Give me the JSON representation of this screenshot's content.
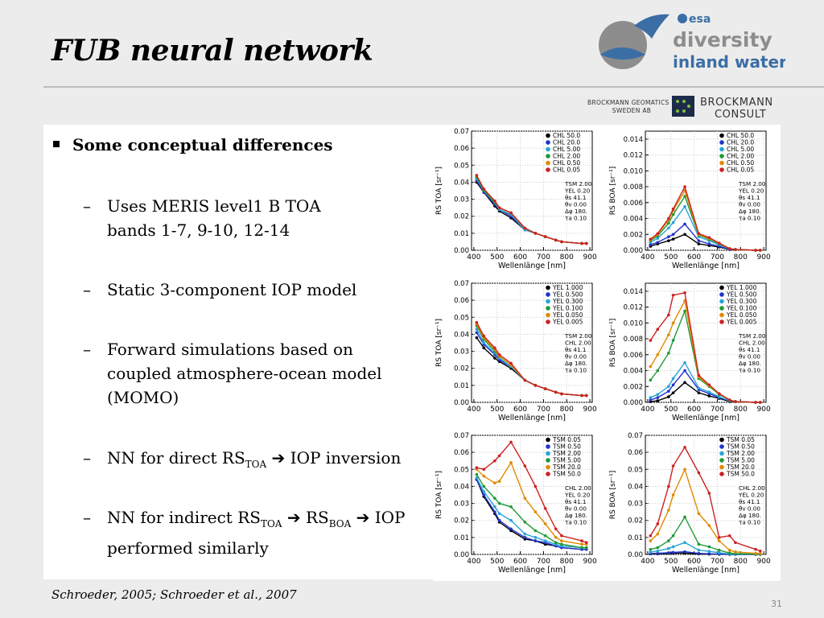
{
  "slide": {
    "title": "FUB neural network",
    "bullet": "Some conceptual differences",
    "items": [
      {
        "lines": [
          "Uses MERIS level1 B TOA",
          "bands 1-7, 9-10, 12-14"
        ]
      },
      {
        "lines": [
          "Static 3-component IOP model"
        ]
      },
      {
        "lines": [
          "Forward simulations based on",
          "coupled atmosphere-ocean model",
          "(MOMO)"
        ]
      },
      {
        "nn_direct": {
          "pre": "NN for direct RS",
          "sub": "TOA",
          "post": "IOP inversion"
        }
      },
      {
        "nn_indirect": {
          "pre": "NN for indirect RS",
          "sub1": "TOA",
          "mid": "RS",
          "sub2": "BOA",
          "post": "IOP",
          "line2": "performed similarly"
        }
      }
    ],
    "footer": "Schroeder, 2005; Schroeder et al., 2007",
    "page_number": "31"
  },
  "logo": {
    "esa": "esa",
    "line1": "diversity",
    "line2": "inland waters",
    "color": "#3b6ea5",
    "grey": "#8d8d8d"
  },
  "partners": {
    "p1_line1": "Brockmann Geomatics",
    "p1_line2": "Sweden AB",
    "p2_line1": "Brockmann",
    "p2_line2": "Consult"
  },
  "chart_data": [
    {
      "type": "line",
      "panel": "TOA-CHL",
      "xlabel": "Wellenlänge [nm]",
      "ylabel": "RS TOA [sr⁻¹]",
      "xlim": [
        390,
        910
      ],
      "ylim": [
        0,
        0.07
      ],
      "yticks": [
        "0.00",
        "0.01",
        "0.02",
        "0.03",
        "0.04",
        "0.05",
        "0.06",
        "0.07"
      ],
      "xticks": [
        "400",
        "500",
        "600",
        "700",
        "800",
        "900"
      ],
      "x": [
        412,
        443,
        490,
        510,
        560,
        620,
        665,
        708,
        753,
        778,
        865,
        885
      ],
      "series": [
        {
          "name": "CHL 50.0",
          "color": "#000000",
          "values": [
            0.04,
            0.034,
            0.026,
            0.023,
            0.019,
            0.012,
            0.01,
            0.008,
            0.006,
            0.005,
            0.004,
            0.004
          ]
        },
        {
          "name": "CHL 20.0",
          "color": "#2233cc",
          "values": [
            0.041,
            0.034,
            0.027,
            0.024,
            0.02,
            0.012,
            0.01,
            0.008,
            0.006,
            0.005,
            0.004,
            0.004
          ]
        },
        {
          "name": "CHL 5.00",
          "color": "#29a3d6",
          "values": [
            0.042,
            0.035,
            0.028,
            0.024,
            0.021,
            0.012,
            0.01,
            0.008,
            0.006,
            0.005,
            0.004,
            0.004
          ]
        },
        {
          "name": "CHL 2.00",
          "color": "#1e9a36",
          "values": [
            0.043,
            0.035,
            0.028,
            0.025,
            0.022,
            0.013,
            0.01,
            0.008,
            0.006,
            0.005,
            0.004,
            0.004
          ]
        },
        {
          "name": "CHL 0.50",
          "color": "#e08a00",
          "values": [
            0.044,
            0.036,
            0.029,
            0.025,
            0.022,
            0.013,
            0.01,
            0.008,
            0.006,
            0.005,
            0.004,
            0.004
          ]
        },
        {
          "name": "CHL 0.05",
          "color": "#cc2222",
          "values": [
            0.044,
            0.036,
            0.029,
            0.025,
            0.022,
            0.013,
            0.01,
            0.008,
            0.006,
            0.005,
            0.004,
            0.004
          ]
        }
      ],
      "annotation": [
        "TSM 2.00",
        "YEL 0.20",
        "θs 41.1",
        "θv 0.00",
        "Δφ 180.",
        "τa 0.10"
      ]
    },
    {
      "type": "line",
      "panel": "BOA-CHL",
      "xlabel": "Wellenlänge [nm]",
      "ylabel": "RS BOA [sr⁻¹]",
      "xlim": [
        390,
        910
      ],
      "ylim": [
        0,
        0.015
      ],
      "yticks": [
        "0.000",
        "0.002",
        "0.004",
        "0.006",
        "0.008",
        "0.010",
        "0.012",
        "0.014"
      ],
      "xticks": [
        "400",
        "500",
        "600",
        "700",
        "800",
        "900"
      ],
      "x": [
        412,
        443,
        490,
        510,
        560,
        620,
        665,
        708,
        753,
        778,
        865,
        885
      ],
      "series": [
        {
          "name": "CHL 50.0",
          "color": "#000000",
          "values": [
            0.0005,
            0.0008,
            0.0012,
            0.0014,
            0.002,
            0.0008,
            0.0006,
            0.0004,
            0.0001,
            0.0001,
            0.0,
            0.0
          ]
        },
        {
          "name": "CHL 20.0",
          "color": "#2233cc",
          "values": [
            0.0007,
            0.001,
            0.0017,
            0.002,
            0.0033,
            0.0012,
            0.0008,
            0.0005,
            0.0001,
            0.0001,
            0.0,
            0.0
          ]
        },
        {
          "name": "CHL 5.00",
          "color": "#29a3d6",
          "values": [
            0.001,
            0.0015,
            0.0028,
            0.0035,
            0.0055,
            0.0017,
            0.0012,
            0.0007,
            0.0002,
            0.0001,
            0.0,
            0.0
          ]
        },
        {
          "name": "CHL 2.00",
          "color": "#1e9a36",
          "values": [
            0.0012,
            0.0018,
            0.0034,
            0.0045,
            0.0068,
            0.0019,
            0.0014,
            0.0008,
            0.0002,
            0.0001,
            0.0,
            0.0
          ]
        },
        {
          "name": "CHL 0.50",
          "color": "#e08a00",
          "values": [
            0.0013,
            0.002,
            0.0038,
            0.005,
            0.0075,
            0.002,
            0.0015,
            0.0009,
            0.0002,
            0.0001,
            0.0,
            0.0
          ]
        },
        {
          "name": "CHL 0.05",
          "color": "#cc2222",
          "values": [
            0.0014,
            0.0021,
            0.004,
            0.0052,
            0.008,
            0.0021,
            0.0016,
            0.0009,
            0.0002,
            0.0001,
            0.0,
            0.0
          ]
        }
      ],
      "annotation": [
        "TSM 2.00",
        "YEL 0.20",
        "θs 41.1",
        "θv 0.00",
        "Δφ 180.",
        "τa 0.10"
      ]
    },
    {
      "type": "line",
      "panel": "TOA-YEL",
      "xlabel": "Wellenlänge [nm]",
      "ylabel": "RS TOA [sr⁻¹]",
      "xlim": [
        390,
        910
      ],
      "ylim": [
        0,
        0.07
      ],
      "yticks": [
        "0.00",
        "0.01",
        "0.02",
        "0.03",
        "0.04",
        "0.05",
        "0.06",
        "0.07"
      ],
      "xticks": [
        "400",
        "500",
        "600",
        "700",
        "800",
        "900"
      ],
      "x": [
        412,
        443,
        490,
        510,
        560,
        620,
        665,
        708,
        753,
        778,
        865,
        885
      ],
      "series": [
        {
          "name": "YEL 1.000",
          "color": "#000000",
          "values": [
            0.038,
            0.032,
            0.026,
            0.024,
            0.02,
            0.013,
            0.01,
            0.008,
            0.006,
            0.005,
            0.004,
            0.004
          ]
        },
        {
          "name": "YEL 0.500",
          "color": "#2233cc",
          "values": [
            0.041,
            0.034,
            0.028,
            0.025,
            0.021,
            0.013,
            0.01,
            0.008,
            0.006,
            0.005,
            0.004,
            0.004
          ]
        },
        {
          "name": "YEL 0.300",
          "color": "#29a3d6",
          "values": [
            0.043,
            0.035,
            0.029,
            0.026,
            0.021,
            0.013,
            0.01,
            0.008,
            0.006,
            0.005,
            0.004,
            0.004
          ]
        },
        {
          "name": "YEL 0.100",
          "color": "#1e9a36",
          "values": [
            0.045,
            0.037,
            0.03,
            0.027,
            0.022,
            0.013,
            0.01,
            0.008,
            0.006,
            0.005,
            0.004,
            0.004
          ]
        },
        {
          "name": "YEL 0.050",
          "color": "#e08a00",
          "values": [
            0.046,
            0.038,
            0.031,
            0.027,
            0.022,
            0.013,
            0.01,
            0.008,
            0.006,
            0.005,
            0.004,
            0.004
          ]
        },
        {
          "name": "YEL 0.005",
          "color": "#cc2222",
          "values": [
            0.047,
            0.039,
            0.032,
            0.028,
            0.023,
            0.013,
            0.01,
            0.008,
            0.006,
            0.005,
            0.004,
            0.004
          ]
        }
      ],
      "annotation": [
        "TSM 2.00",
        "CHL 2.00",
        "θs 41.1",
        "θv 0.00",
        "Δφ 180.",
        "τa 0.10"
      ]
    },
    {
      "type": "line",
      "panel": "BOA-YEL",
      "xlabel": "Wellenlänge [nm]",
      "ylabel": "RS BOA [sr⁻¹]",
      "xlim": [
        390,
        910
      ],
      "ylim": [
        0,
        0.015
      ],
      "yticks": [
        "0.000",
        "0.002",
        "0.004",
        "0.006",
        "0.008",
        "0.010",
        "0.012",
        "0.014"
      ],
      "xticks": [
        "400",
        "500",
        "600",
        "700",
        "800",
        "900"
      ],
      "x": [
        412,
        443,
        490,
        510,
        560,
        620,
        665,
        708,
        753,
        778,
        865,
        885
      ],
      "series": [
        {
          "name": "YEL 1.000",
          "color": "#000000",
          "values": [
            0.0001,
            0.0002,
            0.0007,
            0.0012,
            0.0025,
            0.0012,
            0.0008,
            0.0005,
            0.0001,
            0.0001,
            0.0,
            0.0
          ]
        },
        {
          "name": "YEL 0.500",
          "color": "#2233cc",
          "values": [
            0.0003,
            0.0006,
            0.0014,
            0.0022,
            0.004,
            0.0016,
            0.0011,
            0.0006,
            0.0002,
            0.0001,
            0.0,
            0.0
          ]
        },
        {
          "name": "YEL 0.300",
          "color": "#29a3d6",
          "values": [
            0.0006,
            0.001,
            0.002,
            0.003,
            0.005,
            0.0018,
            0.0013,
            0.0007,
            0.0002,
            0.0001,
            0.0,
            0.0
          ]
        },
        {
          "name": "YEL 0.100",
          "color": "#1e9a36",
          "values": [
            0.0028,
            0.004,
            0.0062,
            0.0078,
            0.0115,
            0.003,
            0.002,
            0.001,
            0.0003,
            0.0001,
            0.0,
            0.0
          ]
        },
        {
          "name": "YEL 0.050",
          "color": "#e08a00",
          "values": [
            0.0045,
            0.006,
            0.0085,
            0.01,
            0.0128,
            0.0032,
            0.0021,
            0.0011,
            0.0003,
            0.0001,
            0.0,
            0.0
          ]
        },
        {
          "name": "YEL 0.005",
          "color": "#cc2222",
          "values": [
            0.0078,
            0.0092,
            0.011,
            0.0135,
            0.0138,
            0.0034,
            0.0022,
            0.0011,
            0.0003,
            0.0001,
            0.0,
            0.0
          ]
        }
      ],
      "annotation": [
        "TSM 2.00",
        "CHL 2.00",
        "θs 41.1",
        "θv 0.00",
        "Δφ 180.",
        "τa 0.10"
      ]
    },
    {
      "type": "line",
      "panel": "TOA-TSM",
      "xlabel": "Wellenlänge [nm]",
      "ylabel": "RS TOA [sr⁻¹]",
      "xlim": [
        390,
        910
      ],
      "ylim": [
        0,
        0.07
      ],
      "yticks": [
        "0.00",
        "0.01",
        "0.02",
        "0.03",
        "0.04",
        "0.05",
        "0.06",
        "0.07"
      ],
      "xticks": [
        "400",
        "500",
        "600",
        "700",
        "800",
        "900"
      ],
      "x": [
        412,
        443,
        490,
        510,
        560,
        620,
        665,
        708,
        753,
        778,
        865,
        885
      ],
      "series": [
        {
          "name": "TSM 0.05",
          "color": "#000000",
          "values": [
            0.044,
            0.034,
            0.024,
            0.019,
            0.014,
            0.009,
            0.008,
            0.006,
            0.005,
            0.004,
            0.003,
            0.003
          ]
        },
        {
          "name": "TSM 0.50",
          "color": "#2233cc",
          "values": [
            0.044,
            0.035,
            0.025,
            0.02,
            0.015,
            0.01,
            0.008,
            0.007,
            0.005,
            0.004,
            0.003,
            0.003
          ]
        },
        {
          "name": "TSM 2.00",
          "color": "#29a3d6",
          "values": [
            0.045,
            0.037,
            0.028,
            0.024,
            0.02,
            0.012,
            0.01,
            0.008,
            0.006,
            0.005,
            0.004,
            0.004
          ]
        },
        {
          "name": "TSM 5.00",
          "color": "#1e9a36",
          "values": [
            0.047,
            0.04,
            0.033,
            0.03,
            0.028,
            0.019,
            0.014,
            0.011,
            0.007,
            0.006,
            0.004,
            0.004
          ]
        },
        {
          "name": "TSM 20.0",
          "color": "#e08a00",
          "values": [
            0.05,
            0.046,
            0.042,
            0.043,
            0.054,
            0.033,
            0.025,
            0.018,
            0.01,
            0.008,
            0.006,
            0.006
          ]
        },
        {
          "name": "TSM 50.0",
          "color": "#cc2222",
          "values": [
            0.051,
            0.05,
            0.055,
            0.058,
            0.066,
            0.052,
            0.04,
            0.027,
            0.015,
            0.011,
            0.008,
            0.007
          ]
        }
      ],
      "annotation": [
        "CHL 2.00",
        "YEL 0.20",
        "θs 41.1",
        "θv 0.00",
        "Δφ 180.",
        "τa 0.10"
      ]
    },
    {
      "type": "line",
      "panel": "BOA-TSM",
      "xlabel": "Wellenlänge [nm]",
      "ylabel": "RS BOA [sr⁻¹]",
      "xlim": [
        390,
        910
      ],
      "ylim": [
        0,
        0.07
      ],
      "yticks": [
        "0.00",
        "0.01",
        "0.02",
        "0.03",
        "0.04",
        "0.05",
        "0.06",
        "0.07"
      ],
      "xticks": [
        "400",
        "500",
        "600",
        "700",
        "800",
        "900"
      ],
      "x": [
        412,
        443,
        490,
        510,
        560,
        620,
        665,
        708,
        753,
        778,
        865,
        885
      ],
      "series": [
        {
          "name": "TSM 0.05",
          "color": "#000000",
          "values": [
            0.0003,
            0.0004,
            0.0006,
            0.0007,
            0.0008,
            0.0003,
            0.0002,
            0.0001,
            0.0,
            0.0,
            0.0,
            0.0
          ]
        },
        {
          "name": "TSM 0.50",
          "color": "#2233cc",
          "values": [
            0.0005,
            0.0007,
            0.001,
            0.0012,
            0.0016,
            0.0006,
            0.0004,
            0.0002,
            0.0001,
            0.0,
            0.0,
            0.0
          ]
        },
        {
          "name": "TSM 2.00",
          "color": "#29a3d6",
          "values": [
            0.0014,
            0.002,
            0.0035,
            0.0045,
            0.007,
            0.0025,
            0.0018,
            0.001,
            0.0003,
            0.0002,
            0.0001,
            0.0001
          ]
        },
        {
          "name": "TSM 5.00",
          "color": "#1e9a36",
          "values": [
            0.003,
            0.004,
            0.008,
            0.011,
            0.022,
            0.006,
            0.0045,
            0.0025,
            0.0008,
            0.0005,
            0.0002,
            0.0002
          ]
        },
        {
          "name": "TSM 20.0",
          "color": "#e08a00",
          "values": [
            0.008,
            0.012,
            0.026,
            0.035,
            0.05,
            0.024,
            0.017,
            0.008,
            0.0025,
            0.0015,
            0.0006,
            0.0005
          ]
        },
        {
          "name": "TSM 50.0",
          "color": "#cc2222",
          "values": [
            0.011,
            0.018,
            0.04,
            0.052,
            0.063,
            0.048,
            0.036,
            0.01,
            0.011,
            0.007,
            0.003,
            0.002
          ]
        }
      ],
      "annotation": [
        "CHL 2.00",
        "YEL 0.20",
        "θs 41.1",
        "θv 0.00",
        "Δφ 180.",
        "τa 0.10"
      ]
    }
  ]
}
